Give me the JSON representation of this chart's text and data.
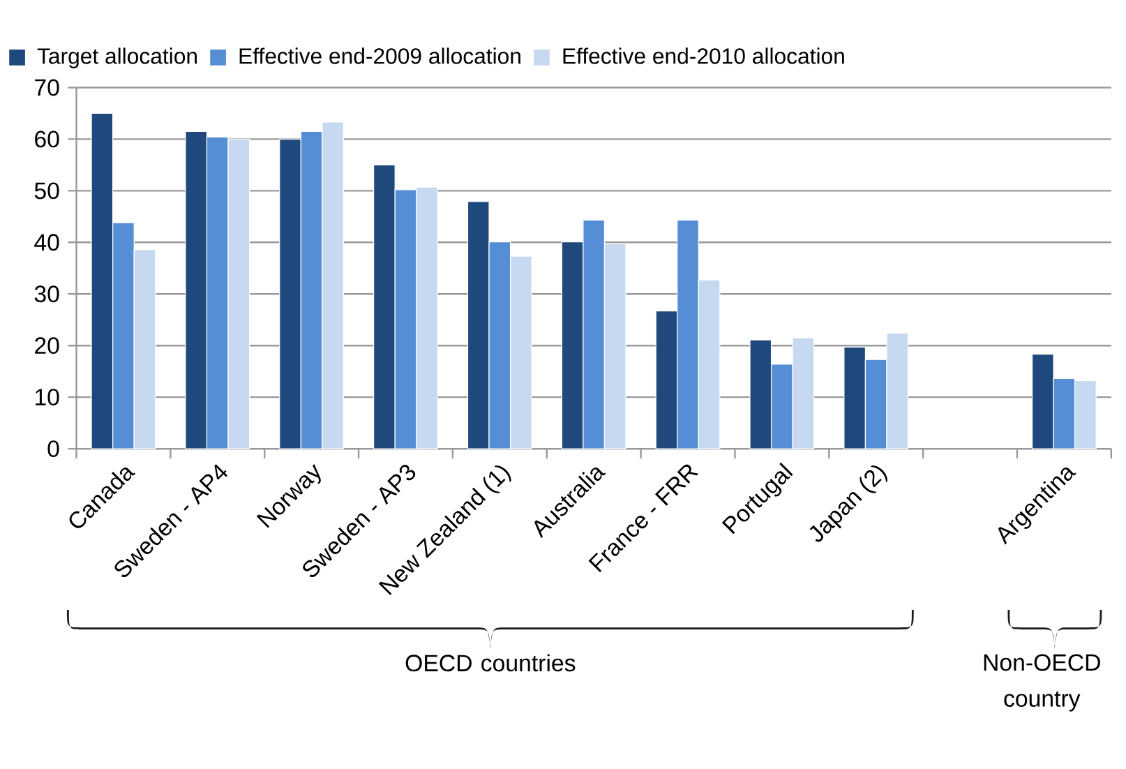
{
  "chart_data": {
    "type": "bar",
    "categories": [
      "Canada",
      "Sweden - AP4",
      "Norway",
      "Sweden - AP3",
      "New Zealand (1)",
      "Australia",
      "France - FRR",
      "Portugal",
      "Japan (2)",
      null,
      "Argentina"
    ],
    "series": [
      {
        "name": "Target allocation",
        "color": "#1f497d",
        "values": [
          65,
          61.5,
          60,
          55,
          47.9,
          40.1,
          26.7,
          21.1,
          19.7,
          null,
          18.3
        ]
      },
      {
        "name": "Effective end-2009 allocation",
        "color": "#558ed5",
        "values": [
          43.8,
          60.4,
          61.5,
          50.2,
          40.1,
          44.3,
          44.3,
          16.4,
          17.3,
          null,
          13.6
        ]
      },
      {
        "name": "Effective end-2010 allocation",
        "color": "#c6d9f1",
        "values": [
          38.6,
          60,
          63.3,
          50.7,
          37.3,
          39.7,
          32.7,
          21.5,
          22.4,
          null,
          13.2
        ]
      }
    ],
    "ylim": [
      0,
      70
    ],
    "yticks": [
      0,
      10,
      20,
      30,
      40,
      50,
      60,
      70
    ],
    "grid": "y",
    "legend": "top",
    "annotations": [
      "OECD countries",
      "Non-OECD country"
    ]
  }
}
